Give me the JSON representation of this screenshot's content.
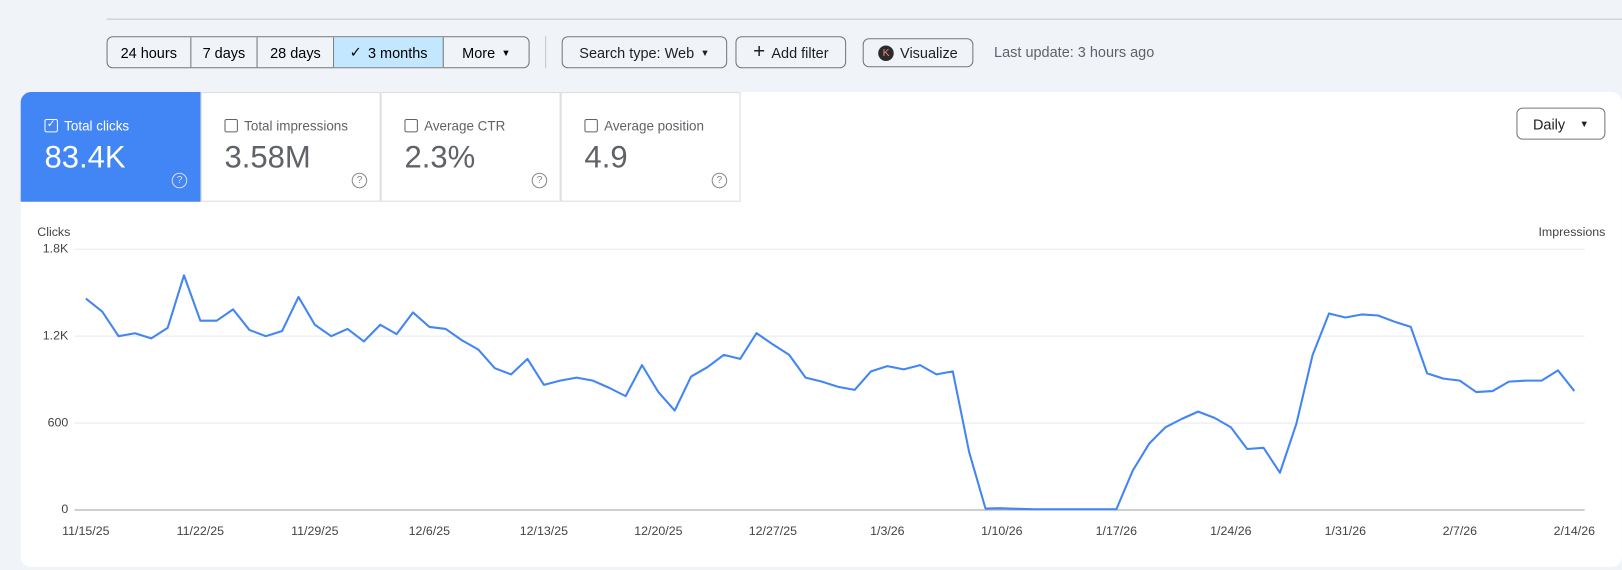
{
  "toolbar": {
    "date_ranges": [
      "24 hours",
      "7 days",
      "28 days",
      "3 months"
    ],
    "more": "More",
    "search_type": "Search type: Web",
    "add_filter": "Add filter",
    "visualize_icon": "K",
    "visualize": "Visualize",
    "last_update": "Last update: 3 hours ago"
  },
  "metrics": [
    {
      "label": "Total clicks",
      "value": "83.4K"
    },
    {
      "label": "Total impressions",
      "value": "3.58M"
    },
    {
      "label": "Average CTR",
      "value": "2.3%"
    },
    {
      "label": "Average position",
      "value": "4.9"
    }
  ],
  "granularity": "Daily",
  "chart_data": {
    "type": "line",
    "y_axis_label": "Clicks",
    "y2_axis_label": "Impressions",
    "categories": [
      "11/15/25",
      null,
      null,
      null,
      null,
      null,
      null,
      "11/22/25",
      null,
      null,
      null,
      null,
      null,
      null,
      "11/29/25",
      null,
      null,
      null,
      null,
      null,
      null,
      "12/6/25",
      null,
      null,
      null,
      null,
      null,
      null,
      "12/13/25",
      null,
      null,
      null,
      null,
      null,
      null,
      "12/20/25",
      null,
      null,
      null,
      null,
      null,
      null,
      "12/27/25",
      null,
      null,
      null,
      null,
      null,
      null,
      "1/3/26",
      null,
      null,
      null,
      null,
      null,
      null,
      "1/10/26",
      null,
      null,
      null,
      null,
      null,
      null,
      "1/17/26",
      null,
      null,
      null,
      null,
      null,
      null,
      "1/24/26",
      null,
      null,
      null,
      null,
      null,
      null,
      "1/31/26",
      null,
      null,
      null,
      null,
      null,
      null,
      "2/7/26",
      null,
      null,
      null,
      null,
      null,
      null,
      "2/14/26"
    ],
    "series": [
      {
        "name": "Clicks",
        "color": "#4285f4",
        "values": [
          1460,
          1370,
          1200,
          1220,
          1185,
          1257,
          1620,
          1307,
          1307,
          1385,
          1243,
          1200,
          1236,
          1471,
          1279,
          1200,
          1250,
          1164,
          1279,
          1214,
          1364,
          1264,
          1250,
          1171,
          1107,
          979,
          936,
          1043,
          864,
          893,
          914,
          893,
          843,
          786,
          1000,
          814,
          686,
          921,
          986,
          1071,
          1043,
          1221,
          1143,
          1071,
          914,
          886,
          850,
          829,
          957,
          993,
          971,
          1000,
          936,
          957,
          400,
          10,
          12,
          8,
          5,
          5,
          5,
          5,
          5,
          5,
          271,
          457,
          571,
          629,
          679,
          636,
          571,
          421,
          429,
          257,
          593,
          1071,
          1357,
          1329,
          1350,
          1343,
          1300,
          1264,
          943,
          907,
          893,
          814,
          821,
          886,
          893,
          893,
          964,
          821
        ]
      }
    ],
    "ylim": [
      0,
      1800
    ],
    "yticks": [
      0,
      600,
      {
        "value": 1200,
        "label": "1.2K"
      },
      {
        "value": 1800,
        "label": "1.8K"
      }
    ],
    "grid": true
  }
}
